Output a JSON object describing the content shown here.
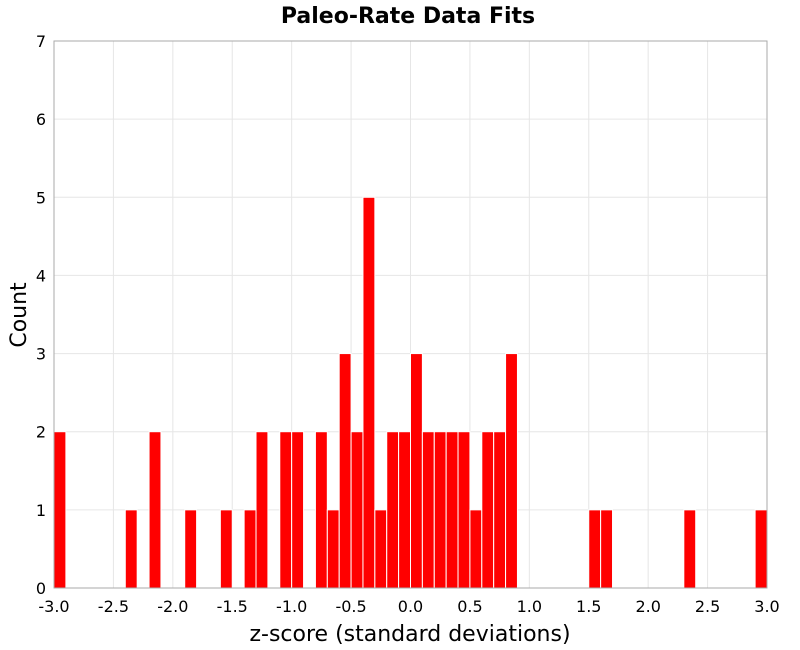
{
  "chart_data": {
    "type": "bar",
    "title": "Paleo-Rate Data Fits",
    "xlabel": "z-score (standard deviations)",
    "ylabel": "Count",
    "xlim": [
      -3.0,
      3.0
    ],
    "ylim": [
      0,
      7
    ],
    "bin_width": 0.1,
    "grid": true,
    "bar_color": "#ff0000",
    "x_ticks": [
      -3.0,
      -2.5,
      -2.0,
      -1.5,
      -1.0,
      -0.5,
      0.0,
      0.5,
      1.0,
      1.5,
      2.0,
      2.5,
      3.0
    ],
    "x_tick_labels": [
      "-3.0",
      "-2.5",
      "-2.0",
      "-1.5",
      "-1.0",
      "-0.5",
      "0.0",
      "0.5",
      "1.0",
      "1.5",
      "2.0",
      "2.5",
      "3.0"
    ],
    "y_ticks": [
      0,
      1,
      2,
      3,
      4,
      5,
      6,
      7
    ],
    "y_tick_labels": [
      "0",
      "1",
      "2",
      "3",
      "4",
      "5",
      "6",
      "7"
    ],
    "bins": [
      {
        "x": -3.0,
        "count": 2
      },
      {
        "x": -2.4,
        "count": 1
      },
      {
        "x": -2.2,
        "count": 2
      },
      {
        "x": -1.9,
        "count": 1
      },
      {
        "x": -1.6,
        "count": 1
      },
      {
        "x": -1.4,
        "count": 1
      },
      {
        "x": -1.3,
        "count": 2
      },
      {
        "x": -1.1,
        "count": 2
      },
      {
        "x": -1.0,
        "count": 2
      },
      {
        "x": -0.8,
        "count": 2
      },
      {
        "x": -0.7,
        "count": 1
      },
      {
        "x": -0.6,
        "count": 3
      },
      {
        "x": -0.5,
        "count": 2
      },
      {
        "x": -0.4,
        "count": 5
      },
      {
        "x": -0.3,
        "count": 1
      },
      {
        "x": -0.2,
        "count": 2
      },
      {
        "x": -0.1,
        "count": 2
      },
      {
        "x": 0.0,
        "count": 3
      },
      {
        "x": 0.1,
        "count": 2
      },
      {
        "x": 0.2,
        "count": 2
      },
      {
        "x": 0.3,
        "count": 2
      },
      {
        "x": 0.4,
        "count": 2
      },
      {
        "x": 0.5,
        "count": 1
      },
      {
        "x": 0.6,
        "count": 2
      },
      {
        "x": 0.7,
        "count": 2
      },
      {
        "x": 0.8,
        "count": 3
      },
      {
        "x": 1.5,
        "count": 1
      },
      {
        "x": 1.6,
        "count": 1
      },
      {
        "x": 2.3,
        "count": 1
      },
      {
        "x": 2.9,
        "count": 1
      }
    ]
  }
}
